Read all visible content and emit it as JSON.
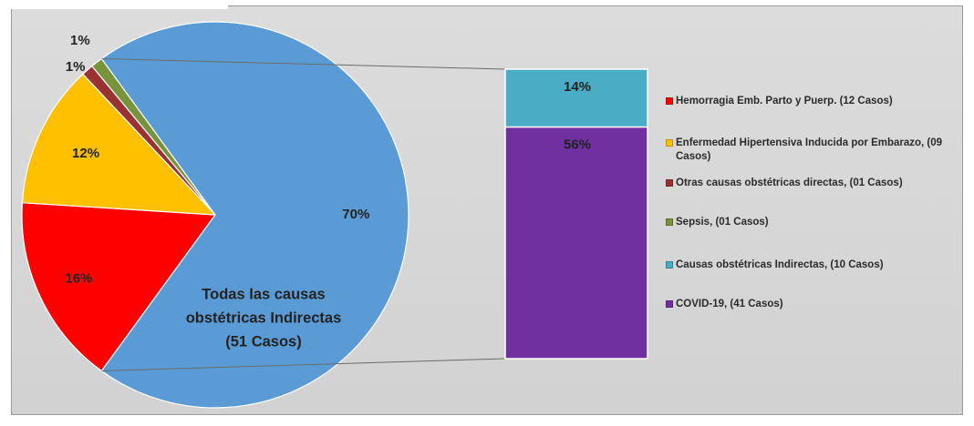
{
  "chart_data": {
    "type": "bar-of-pie",
    "pie": {
      "slices": [
        {
          "label": "Hemorragia Emb. Parto y Puerp.  (12 Casos)",
          "value": 16,
          "value_label": "16%",
          "color": "#ff0000"
        },
        {
          "label": "Enfermedad Hipertensiva Inducida por Embarazo, (09 Casos)",
          "value": 12,
          "value_label": "12%",
          "color": "#ffc000"
        },
        {
          "label": "Otras causas obstétricas directas, (01 Casos)",
          "value": 1,
          "value_label": "1%",
          "color": "#993333"
        },
        {
          "label": "Sepsis, (01 Casos)",
          "value": 1,
          "value_label": "1%",
          "color": "#77933c"
        },
        {
          "label": "Todas las causas obstétricas Indirectas (51 Casos)",
          "value": 70,
          "value_label": "70%",
          "color": "#5b9bd5"
        }
      ],
      "group_text": [
        "Todas las causas",
        "obstétricas Indirectas",
        "(51 Casos)"
      ]
    },
    "bar": {
      "segments": [
        {
          "label": "Causas obstétricas Indirectas, (10 Casos)",
          "value": 14,
          "value_label": "14%",
          "color": "#4bacc6"
        },
        {
          "label": "COVID-19, (41 Casos)",
          "value": 56,
          "value_label": "56%",
          "color": "#7030a0"
        }
      ]
    },
    "legend_placement": "right"
  },
  "legend": [
    {
      "label": "Hemorragia Emb. Parto y Puerp.  (12 Casos)",
      "color": "#ff0000"
    },
    {
      "label": "Enfermedad Hipertensiva Inducida por Embarazo, (09 Casos)",
      "color": "#ffc000"
    },
    {
      "label": "Otras causas obstétricas directas, (01 Casos)",
      "color": "#993333"
    },
    {
      "label": "Sepsis, (01 Casos)",
      "color": "#77933c"
    },
    {
      "label": "Causas obstétricas Indirectas, (10 Casos)",
      "color": "#4bacc6"
    },
    {
      "label": "COVID-19, (41 Casos)",
      "color": "#7030a0"
    }
  ]
}
